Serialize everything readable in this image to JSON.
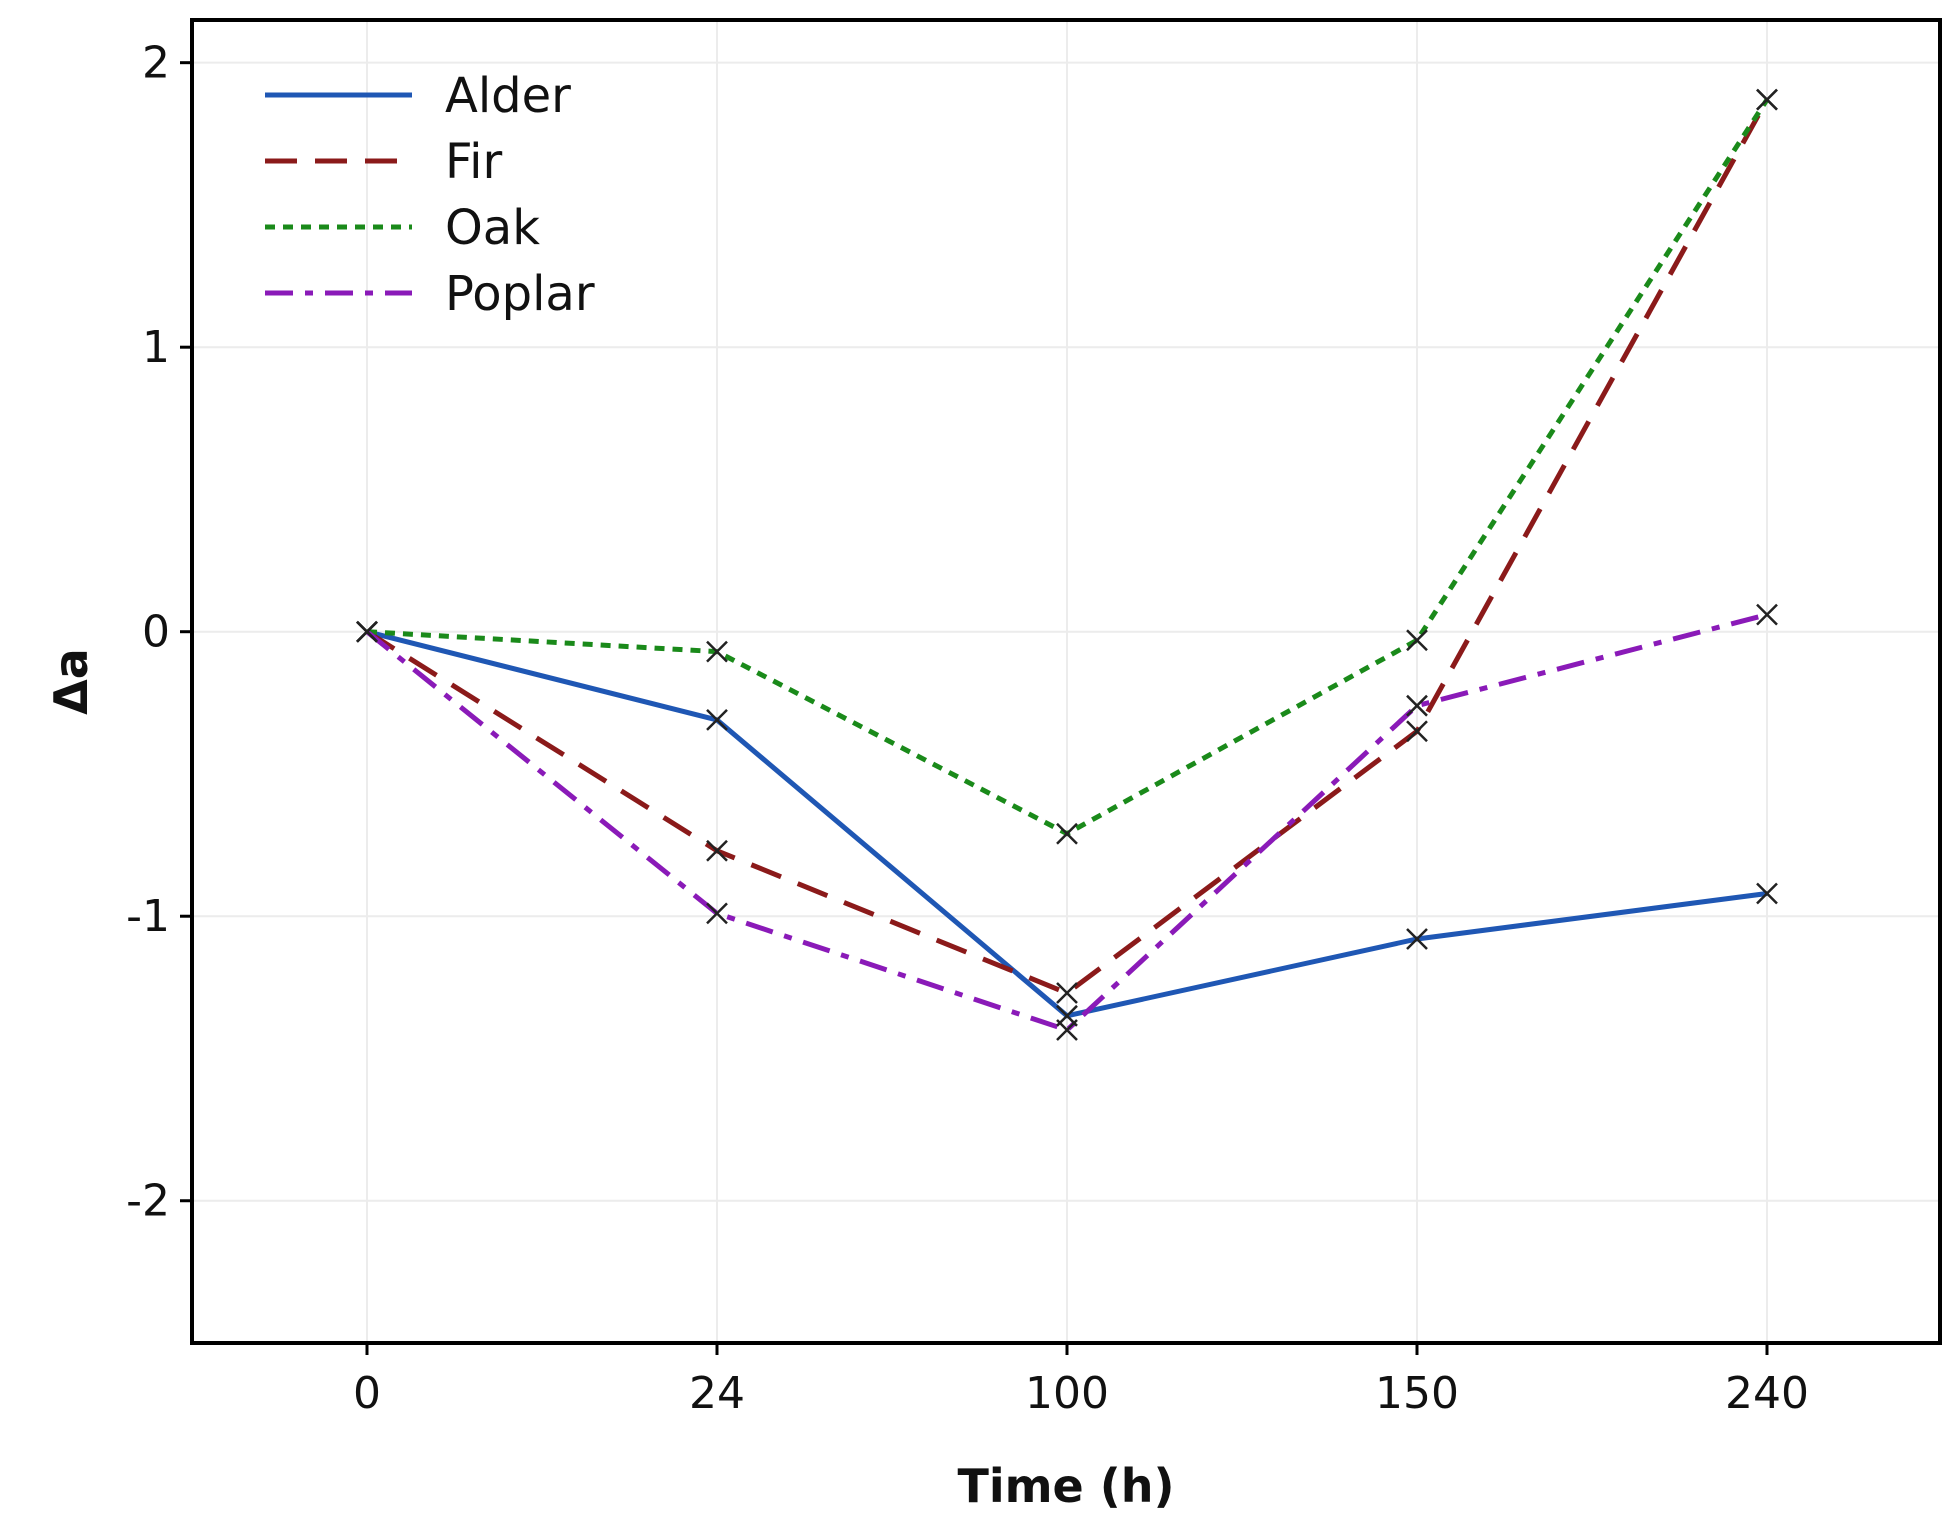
{
  "chart_data": {
    "type": "line",
    "title": "",
    "xlabel": "Time (h)",
    "ylabel": "Δa",
    "categories": [
      "0",
      "24",
      "100",
      "150",
      "240"
    ],
    "ylim": [
      -2.5,
      2.15
    ],
    "yticks": [
      -2,
      -1,
      0,
      1,
      2
    ],
    "grid": true,
    "legend_position": "top-left",
    "marker": "x",
    "series": [
      {
        "name": "Alder",
        "color": "#1f57b4",
        "dash": "solid",
        "values": [
          0,
          -0.31,
          -1.35,
          -1.08,
          -0.92
        ]
      },
      {
        "name": "Fir",
        "color": "#8b1a1a",
        "dash": "dashed",
        "values": [
          0,
          -0.77,
          -1.27,
          -0.35,
          1.87
        ]
      },
      {
        "name": "Oak",
        "color": "#1a8a1a",
        "dash": "dotted",
        "values": [
          0,
          -0.07,
          -0.71,
          -0.03,
          1.87
        ]
      },
      {
        "name": "Poplar",
        "color": "#8a1ab8",
        "dash": "dashdot",
        "values": [
          0,
          -0.99,
          -1.4,
          -0.26,
          0.06
        ]
      }
    ]
  }
}
